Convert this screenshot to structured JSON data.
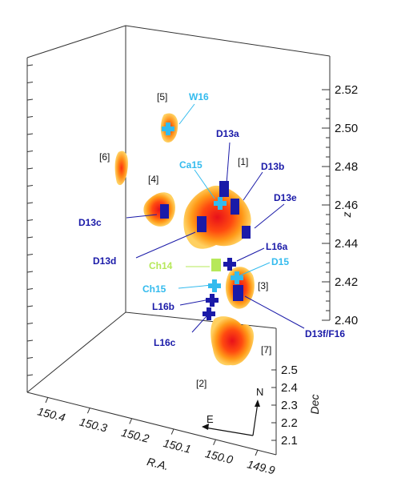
{
  "chart_data": {
    "type": "scatter",
    "title": "",
    "colors": {
      "dark_source": "#1a1aa8",
      "light_source": "#33bbee",
      "green_source": "#b6e85a",
      "blob_core": "#e8101a",
      "blob_mid": "#ff7a10",
      "blob_edge": "#ffd060"
    },
    "axes": {
      "x": {
        "label": "R.A.",
        "ticks": [
          "150.4",
          "150.3",
          "150.2",
          "150.1",
          "150.0",
          "149.9"
        ]
      },
      "y": {
        "label": "Dec",
        "ticks": [
          "2.1",
          "2.2",
          "2.3",
          "2.4",
          "2.5"
        ]
      },
      "z": {
        "label": "z",
        "ticks": [
          "2.40",
          "2.42",
          "2.44",
          "2.46",
          "2.48",
          "2.50",
          "2.52"
        ]
      }
    },
    "compass": {
      "north": "N",
      "east": "E"
    },
    "regions": [
      "[1]",
      "[2]",
      "[3]",
      "[4]",
      "[5]",
      "[6]",
      "[7]"
    ],
    "sources": [
      {
        "name": "W16",
        "type": "cross",
        "color": "light"
      },
      {
        "name": "D13a",
        "type": "box",
        "color": "dark"
      },
      {
        "name": "Ca15",
        "type": "cross",
        "color": "light"
      },
      {
        "name": "D13b",
        "type": "box",
        "color": "dark"
      },
      {
        "name": "D13e",
        "type": "box",
        "color": "dark"
      },
      {
        "name": "D13c",
        "type": "box",
        "color": "dark"
      },
      {
        "name": "D13d",
        "type": "box",
        "color": "dark"
      },
      {
        "name": "L16a",
        "type": "cross",
        "color": "dark"
      },
      {
        "name": "Ch14",
        "type": "box",
        "color": "green"
      },
      {
        "name": "D15",
        "type": "cross",
        "color": "light"
      },
      {
        "name": "Ch15",
        "type": "cross",
        "color": "light"
      },
      {
        "name": "L16b",
        "type": "cross",
        "color": "dark"
      },
      {
        "name": "D13f/F16",
        "type": "box",
        "color": "dark"
      },
      {
        "name": "L16c",
        "type": "cross",
        "color": "dark"
      }
    ]
  }
}
